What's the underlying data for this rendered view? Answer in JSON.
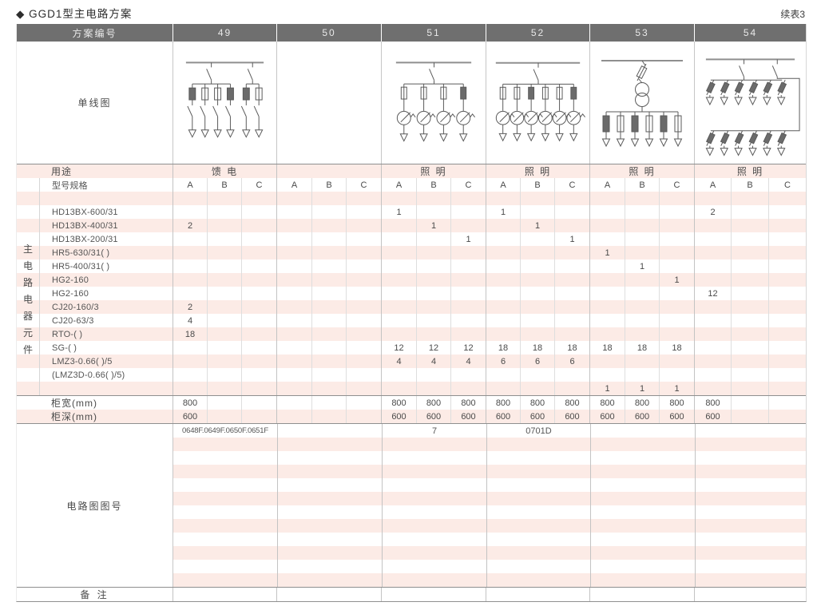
{
  "page": {
    "title": "◆ GGD1型主电路方案",
    "continuation": "续表3"
  },
  "header": {
    "scheme_label": "方案编号",
    "schemes": [
      "49",
      "50",
      "51",
      "52",
      "53",
      "54"
    ]
  },
  "diagram": {
    "row_label": "单线图",
    "descriptions": {
      "49": "busbar, two knife switches, six fused switch feeders with arrows",
      "50": "empty",
      "51": "busbar, knife switch, four fused lamp circuits with arrows",
      "52": "busbar, knife switch, six fused lamp circuits with arrows",
      "53": "busbar, fuse, transformer, six fused outgoing circuits with arrows",
      "54": "busbar, two knife switches, twelve slanted-fuse circuits with arrows"
    }
  },
  "usage": {
    "label": "用途",
    "values": [
      "馈 电",
      "",
      "照 明",
      "照 明",
      "照 明",
      "照 明"
    ]
  },
  "spec": {
    "label": "型号规格",
    "subcols": [
      "A",
      "B",
      "C"
    ]
  },
  "component_group_label": "主电路电器元件",
  "components": [
    {
      "model": "",
      "v": [
        "",
        "",
        "",
        "",
        "",
        "",
        "",
        "",
        "",
        "",
        "",
        "",
        "",
        "",
        "",
        "",
        "",
        ""
      ]
    },
    {
      "model": "HD13BX-600/31",
      "v": [
        "",
        "",
        "",
        "",
        "",
        "",
        "1",
        "",
        "",
        "1",
        "",
        "",
        "",
        "",
        "",
        "2",
        "",
        ""
      ]
    },
    {
      "model": "HD13BX-400/31",
      "v": [
        "2",
        "",
        "",
        "",
        "",
        "",
        "",
        "1",
        "",
        "",
        "1",
        "",
        "",
        "",
        "",
        "",
        "",
        ""
      ]
    },
    {
      "model": "HD13BX-200/31",
      "v": [
        "",
        "",
        "",
        "",
        "",
        "",
        "",
        "",
        "1",
        "",
        "",
        "1",
        "",
        "",
        "",
        "",
        "",
        ""
      ]
    },
    {
      "model": "HR5-630/31( )",
      "v": [
        "",
        "",
        "",
        "",
        "",
        "",
        "",
        "",
        "",
        "",
        "",
        "",
        "1",
        "",
        "",
        "",
        "",
        ""
      ]
    },
    {
      "model": "HR5-400/31( )",
      "v": [
        "",
        "",
        "",
        "",
        "",
        "",
        "",
        "",
        "",
        "",
        "",
        "",
        "",
        "1",
        "",
        "",
        "",
        ""
      ]
    },
    {
      "model": "HG2-160",
      "v": [
        "",
        "",
        "",
        "",
        "",
        "",
        "",
        "",
        "",
        "",
        "",
        "",
        "",
        "",
        "1",
        "",
        "",
        ""
      ]
    },
    {
      "model": "HG2-160",
      "v": [
        "",
        "",
        "",
        "",
        "",
        "",
        "",
        "",
        "",
        "",
        "",
        "",
        "",
        "",
        "",
        "12",
        "",
        ""
      ]
    },
    {
      "model": "CJ20-160/3",
      "v": [
        "2",
        "",
        "",
        "",
        "",
        "",
        "",
        "",
        "",
        "",
        "",
        "",
        "",
        "",
        "",
        "",
        "",
        ""
      ]
    },
    {
      "model": "CJ20-63/3",
      "v": [
        "4",
        "",
        "",
        "",
        "",
        "",
        "",
        "",
        "",
        "",
        "",
        "",
        "",
        "",
        "",
        "",
        "",
        ""
      ]
    },
    {
      "model": "RTO-( )",
      "v": [
        "18",
        "",
        "",
        "",
        "",
        "",
        "",
        "",
        "",
        "",
        "",
        "",
        "",
        "",
        "",
        "",
        "",
        ""
      ]
    },
    {
      "model": "SG-( )",
      "v": [
        "",
        "",
        "",
        "",
        "",
        "",
        "12",
        "12",
        "12",
        "18",
        "18",
        "18",
        "18",
        "18",
        "18",
        "",
        "",
        ""
      ]
    },
    {
      "model": "LMZ3-0.66( )/5",
      "v": [
        "",
        "",
        "",
        "",
        "",
        "",
        "4",
        "4",
        "4",
        "6",
        "6",
        "6",
        "",
        "",
        "",
        "",
        "",
        ""
      ]
    },
    {
      "model": "(LMZ3D-0.66( )/5)",
      "v": [
        "",
        "",
        "",
        "",
        "",
        "",
        "",
        "",
        "",
        "",
        "",
        "",
        "",
        "",
        "",
        "",
        "",
        ""
      ]
    },
    {
      "model": "",
      "v": [
        "",
        "",
        "",
        "",
        "",
        "",
        "",
        "",
        "",
        "",
        "",
        "",
        "1",
        "1",
        "1",
        "",
        "",
        ""
      ]
    }
  ],
  "width_row": {
    "label": "柜宽(mm)",
    "v": [
      "800",
      "",
      "",
      "",
      "",
      "",
      "800",
      "800",
      "800",
      "800",
      "800",
      "800",
      "800",
      "800",
      "800",
      "800",
      "",
      ""
    ]
  },
  "depth_row": {
    "label": "柜深(mm)",
    "v": [
      "600",
      "",
      "",
      "",
      "",
      "",
      "600",
      "600",
      "600",
      "600",
      "600",
      "600",
      "600",
      "600",
      "600",
      "600",
      "",
      ""
    ]
  },
  "drawing": {
    "label": "电路图图号",
    "rows": 12,
    "values": [
      "0648F.0649F.0650F.0651F",
      "",
      "7",
      "0701D",
      "",
      ""
    ]
  },
  "remark": {
    "label": "备 注"
  },
  "colors": {
    "header_bg": "#6f6f6f",
    "stripe_pink": "#fcebe6",
    "separator": "#8f8f8f",
    "text": "#4a4a4a"
  }
}
